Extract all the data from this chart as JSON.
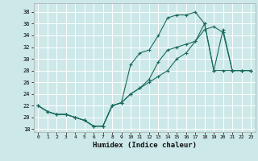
{
  "xlabel": "Humidex (Indice chaleur)",
  "bg_color": "#cde8e8",
  "grid_color": "#ffffff",
  "line_color": "#1a6b5a",
  "xlim": [
    -0.5,
    23.5
  ],
  "ylim": [
    17.5,
    39.5
  ],
  "xticks": [
    0,
    1,
    2,
    3,
    4,
    5,
    6,
    7,
    8,
    9,
    10,
    11,
    12,
    13,
    14,
    15,
    16,
    17,
    18,
    19,
    20,
    21,
    22,
    23
  ],
  "yticks": [
    18,
    20,
    22,
    24,
    26,
    28,
    30,
    32,
    34,
    36,
    38
  ],
  "line1_x": [
    0,
    1,
    2,
    3,
    4,
    5,
    6,
    7,
    8,
    9,
    10,
    11,
    12,
    13,
    14,
    15,
    16,
    17,
    18,
    19,
    20,
    21,
    22,
    23
  ],
  "line1_y": [
    22,
    21,
    20.5,
    20.5,
    20,
    19.5,
    18.5,
    18.5,
    22,
    22.5,
    24,
    25,
    26,
    27,
    28,
    30,
    31,
    33,
    35,
    35.5,
    34.5,
    28,
    28,
    28
  ],
  "line2_x": [
    0,
    1,
    2,
    3,
    4,
    5,
    6,
    7,
    8,
    9,
    10,
    11,
    12,
    13,
    14,
    15,
    16,
    17,
    18,
    19,
    20,
    21,
    22,
    23
  ],
  "line2_y": [
    22,
    21,
    20.5,
    20.5,
    20,
    19.5,
    18.5,
    18.5,
    22,
    22.5,
    29,
    31,
    31.5,
    34,
    37,
    37.5,
    37.5,
    38,
    36,
    28,
    28,
    28,
    28,
    28
  ],
  "line3_x": [
    0,
    1,
    2,
    3,
    4,
    5,
    6,
    7,
    8,
    9,
    10,
    11,
    12,
    13,
    14,
    15,
    16,
    17,
    18,
    19,
    20,
    21,
    22,
    23
  ],
  "line3_y": [
    22,
    21,
    20.5,
    20.5,
    20,
    19.5,
    18.5,
    18.5,
    22,
    22.5,
    24,
    25,
    26.5,
    29.5,
    31.5,
    32,
    32.5,
    33,
    36,
    28,
    35,
    28,
    28,
    28
  ]
}
